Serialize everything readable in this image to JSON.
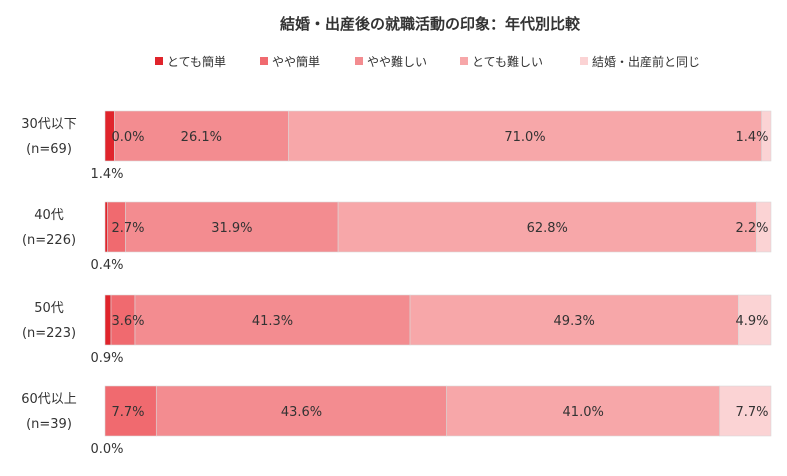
{
  "chart_data": {
    "type": "bar",
    "orientation": "horizontal",
    "stacked": "percent",
    "title": "結婚・出産後の就職活動の印象：年代別比較",
    "legend_position": "top",
    "categories": [
      {
        "label": "30代以下",
        "n": "(n=69)"
      },
      {
        "label": "40代",
        "n": "(n=226)"
      },
      {
        "label": "50代",
        "n": "(n=223)"
      },
      {
        "label": "60代以上",
        "n": "(n=39)"
      }
    ],
    "series": [
      {
        "name": "とても簡単",
        "color": "#e0242b",
        "values": [
          1.4,
          0.4,
          0.9,
          0.0
        ],
        "labels": [
          "1.4%",
          "0.4%",
          "0.9%",
          "0.0%"
        ]
      },
      {
        "name": "やや簡単",
        "color": "#f06a6f",
        "values": [
          0.0,
          2.7,
          3.6,
          7.7
        ],
        "labels": [
          "0.0%",
          "2.7%",
          "3.6%",
          "7.7%"
        ]
      },
      {
        "name": "やや難しい",
        "color": "#f38c90",
        "values": [
          26.1,
          31.9,
          41.3,
          43.6
        ],
        "labels": [
          "26.1%",
          "31.9%",
          "41.3%",
          "43.6%"
        ]
      },
      {
        "name": "とても難しい",
        "color": "#f7a7a9",
        "values": [
          71.0,
          62.8,
          49.3,
          41.0
        ],
        "labels": [
          "71.0%",
          "62.8%",
          "49.3%",
          "41.0%"
        ]
      },
      {
        "name": "結婚・出産前と同じ",
        "color": "#fbd3d4",
        "values": [
          1.4,
          2.2,
          4.9,
          7.7
        ],
        "labels": [
          "1.4%",
          "2.2%",
          "4.9%",
          "7.7%"
        ]
      }
    ]
  }
}
